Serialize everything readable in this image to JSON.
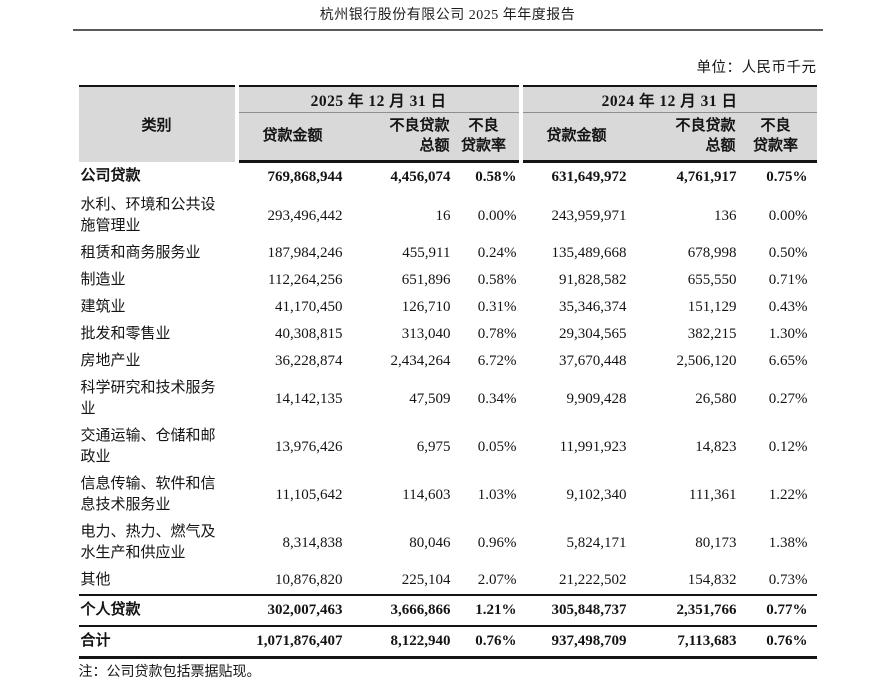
{
  "page": {
    "title": "杭州银行股份有限公司 2025 年年度报告",
    "unit_label": "单位：人民币千元",
    "note": "注：公司贷款包括票据贴现。"
  },
  "table": {
    "category_header": "类别",
    "groups": [
      {
        "label": "2025 年 12 月 31 日"
      },
      {
        "label": "2024 年 12 月 31 日"
      }
    ],
    "columns": {
      "loan_amount": "贷款金额",
      "npl_total": [
        "不良贷款",
        "总额"
      ],
      "npl_rate": [
        "不良",
        "贷款率"
      ]
    },
    "rows": [
      {
        "label": "公司贷款",
        "bold": true,
        "rule_above": false,
        "values": [
          "769,868,944",
          "4,456,074",
          "0.58%",
          "631,649,972",
          "4,761,917",
          "0.75%"
        ]
      },
      {
        "label": "水利、环境和公共设施管理业",
        "bold": false,
        "rule_above": false,
        "values": [
          "293,496,442",
          "16",
          "0.00%",
          "243,959,971",
          "136",
          "0.00%"
        ]
      },
      {
        "label": "租赁和商务服务业",
        "bold": false,
        "rule_above": false,
        "values": [
          "187,984,246",
          "455,911",
          "0.24%",
          "135,489,668",
          "678,998",
          "0.50%"
        ]
      },
      {
        "label": "制造业",
        "bold": false,
        "rule_above": false,
        "values": [
          "112,264,256",
          "651,896",
          "0.58%",
          "91,828,582",
          "655,550",
          "0.71%"
        ]
      },
      {
        "label": "建筑业",
        "bold": false,
        "rule_above": false,
        "values": [
          "41,170,450",
          "126,710",
          "0.31%",
          "35,346,374",
          "151,129",
          "0.43%"
        ]
      },
      {
        "label": "批发和零售业",
        "bold": false,
        "rule_above": false,
        "values": [
          "40,308,815",
          "313,040",
          "0.78%",
          "29,304,565",
          "382,215",
          "1.30%"
        ]
      },
      {
        "label": "房地产业",
        "bold": false,
        "rule_above": false,
        "values": [
          "36,228,874",
          "2,434,264",
          "6.72%",
          "37,670,448",
          "2,506,120",
          "6.65%"
        ]
      },
      {
        "label": "科学研究和技术服务业",
        "bold": false,
        "rule_above": false,
        "values": [
          "14,142,135",
          "47,509",
          "0.34%",
          "9,909,428",
          "26,580",
          "0.27%"
        ]
      },
      {
        "label": "交通运输、仓储和邮政业",
        "bold": false,
        "rule_above": false,
        "values": [
          "13,976,426",
          "6,975",
          "0.05%",
          "11,991,923",
          "14,823",
          "0.12%"
        ]
      },
      {
        "label": "信息传输、软件和信息技术服务业",
        "bold": false,
        "rule_above": false,
        "values": [
          "11,105,642",
          "114,603",
          "1.03%",
          "9,102,340",
          "111,361",
          "1.22%"
        ]
      },
      {
        "label": "电力、热力、燃气及水生产和供应业",
        "bold": false,
        "rule_above": false,
        "values": [
          "8,314,838",
          "80,046",
          "0.96%",
          "5,824,171",
          "80,173",
          "1.38%"
        ]
      },
      {
        "label": "其他",
        "bold": false,
        "rule_above": false,
        "values": [
          "10,876,820",
          "225,104",
          "2.07%",
          "21,222,502",
          "154,832",
          "0.73%"
        ]
      },
      {
        "label": "个人贷款",
        "bold": true,
        "rule_above": true,
        "values": [
          "302,007,463",
          "3,666,866",
          "1.21%",
          "305,848,737",
          "2,351,766",
          "0.77%"
        ]
      },
      {
        "label": "合计",
        "bold": true,
        "rule_above": true,
        "values": [
          "1,071,876,407",
          "8,122,940",
          "0.76%",
          "937,498,709",
          "7,113,683",
          "0.76%"
        ]
      }
    ]
  }
}
